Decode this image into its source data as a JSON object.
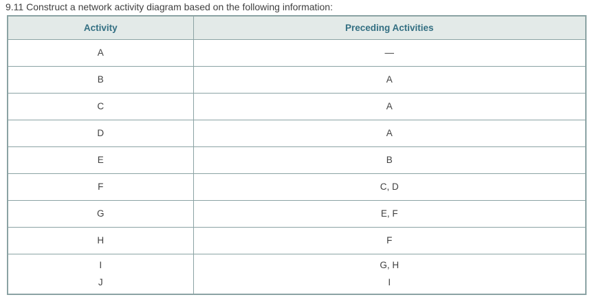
{
  "exercise": {
    "number": "9.11",
    "title": "9.11 Construct a network activity diagram based on the following information:"
  },
  "colors": {
    "header_bg": "#e3eae8",
    "header_text": "#336f82",
    "border": "#8aa2a3",
    "body_text": "#3f3f3f",
    "page_bg": "#ffffff"
  },
  "table": {
    "headers": [
      "Activity",
      "Preceding Activities"
    ],
    "rows": [
      {
        "activity": "A",
        "preceding": "—"
      },
      {
        "activity": "B",
        "preceding": "A"
      },
      {
        "activity": "C",
        "preceding": "A"
      },
      {
        "activity": "D",
        "preceding": "A"
      },
      {
        "activity": "E",
        "preceding": "B"
      },
      {
        "activity": "F",
        "preceding": "C, D"
      },
      {
        "activity": "G",
        "preceding": "E, F"
      },
      {
        "activity": "H",
        "preceding": "F"
      },
      {
        "activity": "I",
        "preceding": "G, H"
      },
      {
        "activity": "J",
        "preceding": "I"
      }
    ]
  }
}
